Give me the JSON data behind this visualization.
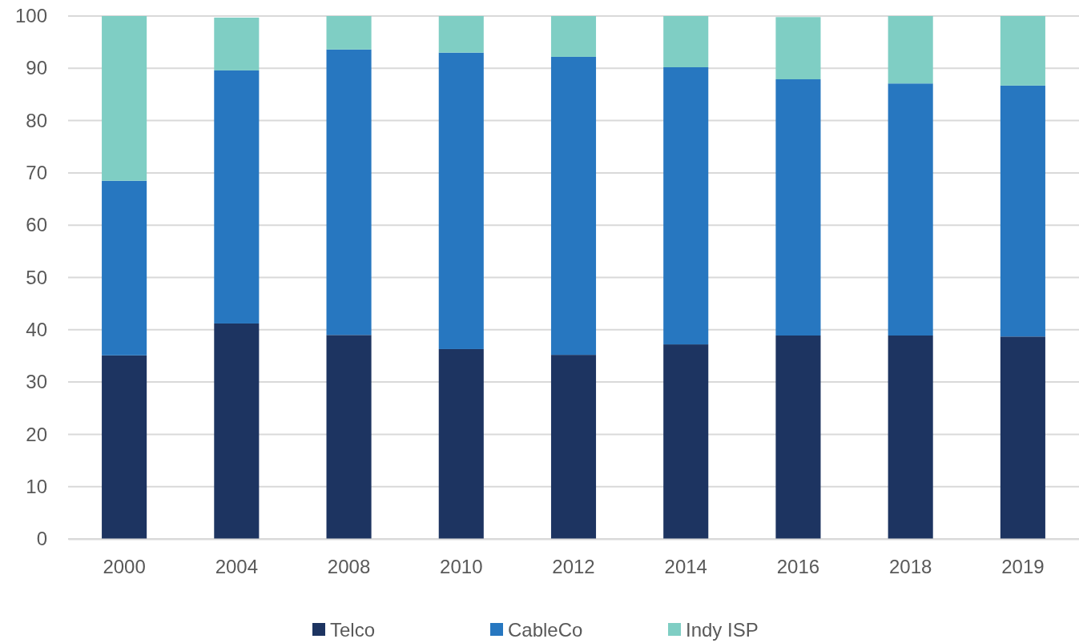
{
  "chart_data": {
    "type": "bar",
    "stacked": true,
    "categories": [
      "2000",
      "2004",
      "2008",
      "2010",
      "2012",
      "2014",
      "2016",
      "2018",
      "2019"
    ],
    "series": [
      {
        "name": "Telco",
        "color": "#1d3461",
        "values": [
          35.1,
          41.2,
          39.0,
          36.3,
          35.2,
          37.2,
          38.9,
          38.9,
          38.7
        ]
      },
      {
        "name": "CableCo",
        "color": "#2777c0",
        "values": [
          33.4,
          48.4,
          54.6,
          56.7,
          57.0,
          53.0,
          49.0,
          48.2,
          48.0
        ]
      },
      {
        "name": "Indy ISP",
        "color": "#7fcec4",
        "values": [
          31.5,
          10.1,
          6.4,
          7.0,
          7.8,
          9.8,
          11.9,
          12.9,
          13.3
        ]
      }
    ],
    "ylim": [
      0,
      100
    ],
    "yticks": [
      0,
      10,
      20,
      30,
      40,
      50,
      60,
      70,
      80,
      90,
      100
    ],
    "grid": "y",
    "legend": "bottom"
  }
}
